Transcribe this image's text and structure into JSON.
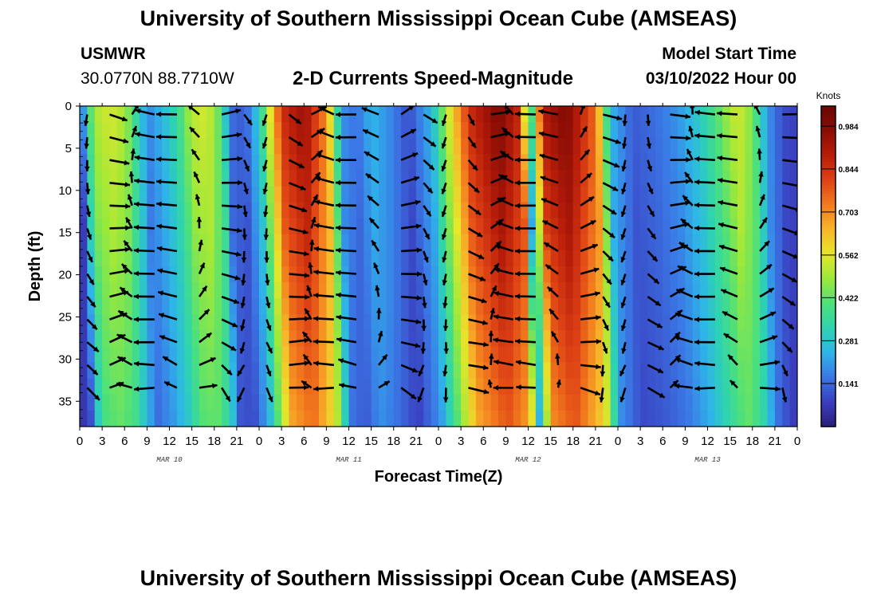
{
  "header": {
    "title": "University of Southern Mississippi Ocean Cube (AMSEAS)",
    "station": "USMWR",
    "coords": "30.0770N  88.7710W",
    "subtitle": "2-D Currents Speed-Magnitude",
    "model_label": "Model Start Time",
    "model_time": "03/10/2022 Hour 00"
  },
  "footer": {
    "title": "University of Southern Mississippi Ocean Cube (AMSEAS)"
  },
  "chart_data": {
    "type": "heatmap",
    "title": "2-D Currents Speed-Magnitude",
    "xlabel": "Forecast Time(Z)",
    "ylabel": "Depth (ft)",
    "x_ticks": [
      "0",
      "3",
      "6",
      "9",
      "12",
      "15",
      "18",
      "21",
      "0",
      "3",
      "6",
      "9",
      "12",
      "15",
      "18",
      "21",
      "0",
      "3",
      "6",
      "9",
      "12",
      "15",
      "18",
      "21",
      "0",
      "3",
      "6",
      "9",
      "12",
      "15",
      "18",
      "21",
      "0"
    ],
    "x_dates": [
      {
        "label": "MAR 10",
        "hour": 12
      },
      {
        "label": "MAR 11",
        "hour": 36
      },
      {
        "label": "MAR 12",
        "hour": 60
      },
      {
        "label": "MAR 13",
        "hour": 84
      }
    ],
    "xlim_hours": [
      0,
      96
    ],
    "y_ticks": [
      0,
      5,
      10,
      15,
      20,
      25,
      30,
      35
    ],
    "ylim_ft": [
      0,
      38
    ],
    "colorbar": {
      "unit": "Knots",
      "range": [
        0.0,
        1.05
      ],
      "ticks": [
        "0.984",
        "0.844",
        "0.703",
        "0.562",
        "0.422",
        "0.281",
        "0.141"
      ],
      "tick_values": [
        0.984,
        0.844,
        0.703,
        0.562,
        0.422,
        0.281,
        0.141
      ],
      "colors": [
        "#2b1e7a",
        "#3a3fc0",
        "#3b78e6",
        "#2eb5e8",
        "#2ed3b0",
        "#4de07a",
        "#9ce83a",
        "#e6e62a",
        "#f7b62a",
        "#f27a1e",
        "#de4215",
        "#b81d0a",
        "#8b0d05",
        "#6a0805"
      ]
    },
    "speed_profile_surface": [
      {
        "hour": 0,
        "knots": 0.08
      },
      {
        "hour": 1,
        "knots": 0.35
      },
      {
        "hour": 2,
        "knots": 0.5
      },
      {
        "hour": 4,
        "knots": 0.55
      },
      {
        "hour": 6,
        "knots": 0.5
      },
      {
        "hour": 8,
        "knots": 0.3
      },
      {
        "hour": 9,
        "knots": 0.18
      },
      {
        "hour": 11,
        "knots": 0.25
      },
      {
        "hour": 13,
        "knots": 0.35
      },
      {
        "hour": 15,
        "knots": 0.52
      },
      {
        "hour": 17,
        "knots": 0.55
      },
      {
        "hour": 19,
        "knots": 0.4
      },
      {
        "hour": 20,
        "knots": 0.15
      },
      {
        "hour": 22,
        "knots": 0.12
      },
      {
        "hour": 24,
        "knots": 0.3
      },
      {
        "hour": 27,
        "knots": 0.85
      },
      {
        "hour": 30,
        "knots": 0.95
      },
      {
        "hour": 33,
        "knots": 0.7
      },
      {
        "hour": 35,
        "knots": 0.2
      },
      {
        "hour": 37,
        "knots": 0.15
      },
      {
        "hour": 39,
        "knots": 0.25
      },
      {
        "hour": 41,
        "knots": 0.2
      },
      {
        "hour": 44,
        "knots": 0.1
      },
      {
        "hour": 47,
        "knots": 0.25
      },
      {
        "hour": 49,
        "knots": 0.5
      },
      {
        "hour": 52,
        "knots": 0.85
      },
      {
        "hour": 56,
        "knots": 1.0
      },
      {
        "hour": 59,
        "knots": 0.85
      },
      {
        "hour": 60,
        "knots": 0.25
      },
      {
        "hour": 62,
        "knots": 0.9
      },
      {
        "hour": 65,
        "knots": 1.0
      },
      {
        "hour": 69,
        "knots": 0.75
      },
      {
        "hour": 71,
        "knots": 0.25
      },
      {
        "hour": 74,
        "knots": 0.12
      },
      {
        "hour": 77,
        "knots": 0.15
      },
      {
        "hour": 80,
        "knots": 0.2
      },
      {
        "hour": 83,
        "knots": 0.3
      },
      {
        "hour": 86,
        "knots": 0.45
      },
      {
        "hour": 88,
        "knots": 0.55
      },
      {
        "hour": 90,
        "knots": 0.45
      },
      {
        "hour": 92,
        "knots": 0.2
      },
      {
        "hour": 94,
        "knots": 0.1
      },
      {
        "hour": 96,
        "knots": 0.08
      }
    ]
  }
}
